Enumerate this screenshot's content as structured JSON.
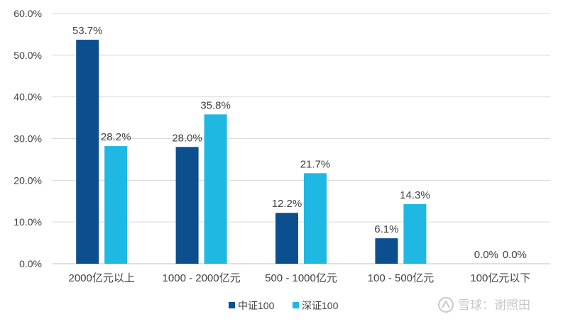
{
  "chart_data": {
    "type": "bar",
    "categories": [
      "2000亿元以上",
      "1000 - 2000亿元",
      "500 - 1000亿元",
      "100 - 500亿元",
      "100亿元以下"
    ],
    "series": [
      {
        "name": "中证100",
        "values": [
          53.7,
          28.0,
          12.2,
          6.1,
          0.0
        ],
        "color": "#0b4f8f"
      },
      {
        "name": "深证100",
        "values": [
          28.2,
          35.8,
          21.7,
          14.3,
          0.0
        ],
        "color": "#1fb8e3"
      }
    ],
    "value_labels": [
      [
        "53.7%",
        "28.0%",
        "12.2%",
        "6.1%",
        "0.0%"
      ],
      [
        "28.2%",
        "35.8%",
        "21.7%",
        "14.3%",
        "0.0%"
      ]
    ],
    "yticks": [
      "0.0%",
      "10.0%",
      "20.0%",
      "30.0%",
      "40.0%",
      "50.0%",
      "60.0%"
    ],
    "ylim": [
      0,
      60
    ],
    "grid": true,
    "legend": "bottom-center"
  },
  "watermark": {
    "text": "雪球：谢照田",
    "icon": "snowball-logo-icon"
  }
}
